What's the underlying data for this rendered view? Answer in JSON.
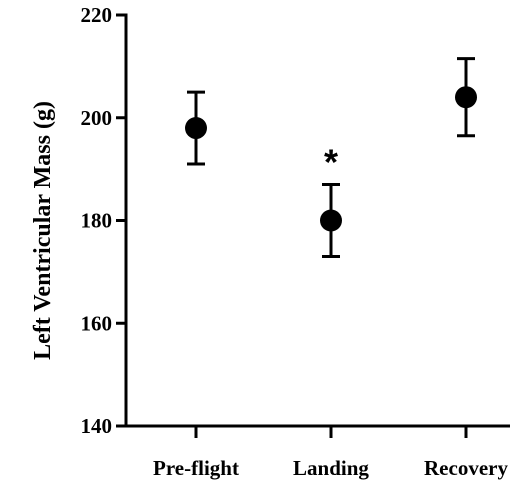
{
  "chart_data": {
    "type": "scatter",
    "title": "",
    "xlabel": "",
    "ylabel": "Left Ventricular Mass (g)",
    "ylim": [
      140,
      220
    ],
    "yticks": [
      140,
      160,
      180,
      200,
      220
    ],
    "grid": false,
    "legend": "none",
    "categories": [
      "Pre-flight",
      "Landing",
      "Recovery"
    ],
    "values": [
      198,
      180,
      204
    ],
    "error_low": [
      191,
      173,
      196.5
    ],
    "error_high": [
      205,
      187,
      211.5
    ],
    "annotations": [
      {
        "category": "Landing",
        "text": "*"
      }
    ],
    "colors": {
      "marker": "#000000",
      "axis": "#000000"
    }
  }
}
